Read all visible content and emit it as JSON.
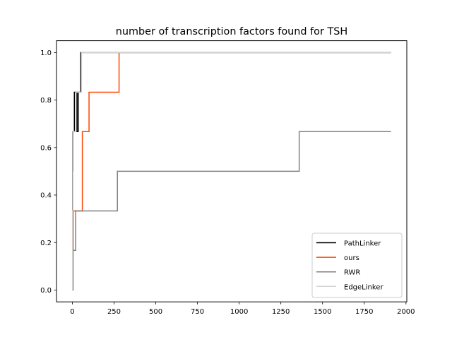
{
  "chart_data": {
    "type": "line",
    "title": "number of transcription factors found for TSH",
    "xlabel": "",
    "ylabel": "",
    "xlim": [
      -95,
      2005
    ],
    "ylim": [
      -0.05,
      1.05
    ],
    "xticks": [
      0,
      250,
      500,
      750,
      1000,
      1250,
      1500,
      1750,
      2000
    ],
    "yticks": [
      0.0,
      0.2,
      0.4,
      0.6,
      0.8,
      1.0
    ],
    "grid": false,
    "legend_position": "lower right",
    "step": "post",
    "series": [
      {
        "name": "PathLinker",
        "color": "#000000",
        "x": [
          0,
          2,
          4,
          8,
          12,
          20,
          28,
          35,
          45,
          50,
          1910
        ],
        "y": [
          0.0,
          0.5,
          0.667,
          0.667,
          0.833,
          0.833,
          0.667,
          0.833,
          0.833,
          1.0,
          1.0
        ]
      },
      {
        "name": "ours",
        "color": "#ff4500",
        "x": [
          0,
          2,
          5,
          60,
          100,
          280,
          1910
        ],
        "y": [
          0.0,
          0.167,
          0.333,
          0.667,
          0.833,
          1.0,
          1.0
        ]
      },
      {
        "name": "RWR",
        "color": "#808080",
        "x": [
          0,
          5,
          10,
          20,
          270,
          1360,
          1910
        ],
        "y": [
          0.0,
          0.167,
          0.167,
          0.333,
          0.5,
          0.667,
          0.667
        ]
      },
      {
        "name": "EdgeLinker",
        "color": "#d3d3d3",
        "x": [
          0,
          1,
          3,
          6,
          20,
          30,
          40,
          55,
          1910
        ],
        "y": [
          0.0,
          0.333,
          0.5,
          0.667,
          0.833,
          0.833,
          0.833,
          1.0,
          1.0
        ]
      }
    ]
  }
}
